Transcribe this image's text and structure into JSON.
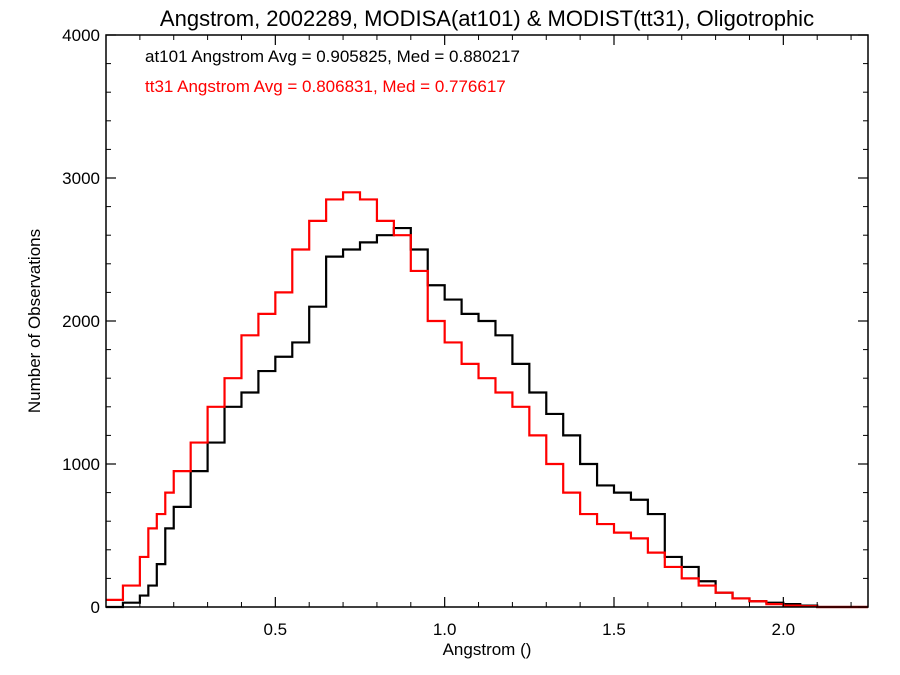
{
  "chart_data": {
    "type": "line",
    "title": "Angstrom, 2002289, MODISA(at101) & MODIST(tt31), Oligotrophic",
    "xlabel": "Angstrom ()",
    "ylabel": "Number of Observations",
    "xlim": [
      0.0,
      2.25
    ],
    "ylim": [
      0,
      4000
    ],
    "x_ticks": [
      "0.5",
      "1.0",
      "1.5",
      "2.0"
    ],
    "y_ticks": [
      "0",
      "1000",
      "2000",
      "3000",
      "4000"
    ],
    "x_tick_values": [
      0.5,
      1.0,
      1.5,
      2.0
    ],
    "y_tick_values": [
      0,
      1000,
      2000,
      3000,
      4000
    ],
    "grid": false,
    "annotations": [
      {
        "text": "at101 Angstrom Avg = 0.905825, Med = 0.880217",
        "color": "#000000"
      },
      {
        "text": "tt31 Angstrom Avg = 0.806831, Med = 0.776617",
        "color": "#ff0000"
      }
    ],
    "series": [
      {
        "color": "#000000",
        "x": [
          0.0,
          0.05,
          0.1,
          0.125,
          0.15,
          0.175,
          0.2,
          0.25,
          0.3,
          0.35,
          0.4,
          0.45,
          0.5,
          0.55,
          0.6,
          0.65,
          0.7,
          0.75,
          0.8,
          0.85,
          0.9,
          0.95,
          1.0,
          1.05,
          1.1,
          1.15,
          1.2,
          1.25,
          1.3,
          1.35,
          1.4,
          1.45,
          1.5,
          1.55,
          1.6,
          1.65,
          1.7,
          1.75,
          1.8,
          1.85,
          1.9,
          1.95,
          2.0,
          2.05,
          2.1,
          2.15,
          2.2,
          2.25
        ],
        "y": [
          0,
          30,
          80,
          150,
          300,
          550,
          700,
          950,
          1150,
          1400,
          1500,
          1650,
          1750,
          1850,
          2100,
          2450,
          2500,
          2550,
          2600,
          2650,
          2500,
          2250,
          2150,
          2050,
          2000,
          1900,
          1700,
          1500,
          1350,
          1200,
          1000,
          850,
          800,
          750,
          650,
          350,
          280,
          180,
          100,
          60,
          40,
          30,
          20,
          10,
          0,
          0,
          0,
          0
        ]
      },
      {
        "color": "#ff0000",
        "x": [
          0.0,
          0.05,
          0.1,
          0.125,
          0.15,
          0.175,
          0.2,
          0.25,
          0.3,
          0.35,
          0.4,
          0.45,
          0.5,
          0.55,
          0.6,
          0.65,
          0.7,
          0.75,
          0.8,
          0.85,
          0.9,
          0.95,
          1.0,
          1.05,
          1.1,
          1.15,
          1.2,
          1.25,
          1.3,
          1.35,
          1.4,
          1.45,
          1.5,
          1.55,
          1.6,
          1.65,
          1.7,
          1.75,
          1.8,
          1.85,
          1.9,
          1.95,
          2.0,
          2.05,
          2.1,
          2.15,
          2.2,
          2.25
        ],
        "y": [
          50,
          150,
          350,
          550,
          650,
          800,
          950,
          1150,
          1400,
          1600,
          1900,
          2050,
          2200,
          2500,
          2700,
          2850,
          2900,
          2850,
          2700,
          2600,
          2350,
          2000,
          1850,
          1700,
          1600,
          1500,
          1400,
          1200,
          1000,
          800,
          650,
          580,
          520,
          480,
          380,
          280,
          200,
          150,
          100,
          60,
          40,
          20,
          10,
          5,
          0,
          0,
          0,
          0
        ]
      }
    ]
  }
}
